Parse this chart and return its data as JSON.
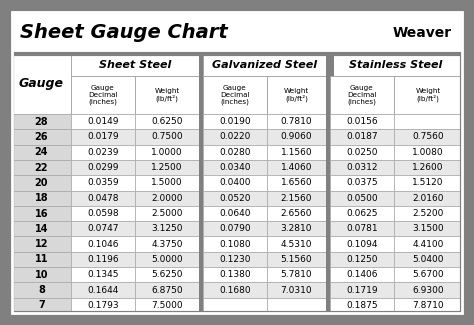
{
  "title": "Sheet Gauge Chart",
  "bg_outer": "#808080",
  "bg_white": "#ffffff",
  "bg_light_gray": "#d8d8d8",
  "bg_row_even": "#ffffff",
  "bg_row_odd": "#e8e8e8",
  "border_dark": "#555555",
  "border_light": "#aaaaaa",
  "gauges": [
    28,
    26,
    24,
    22,
    20,
    18,
    16,
    14,
    12,
    11,
    10,
    8,
    7
  ],
  "sheet_steel": [
    [
      "0.0149",
      "0.6250"
    ],
    [
      "0.0179",
      "0.7500"
    ],
    [
      "0.0239",
      "1.0000"
    ],
    [
      "0.0299",
      "1.2500"
    ],
    [
      "0.0359",
      "1.5000"
    ],
    [
      "0.0478",
      "2.0000"
    ],
    [
      "0.0598",
      "2.5000"
    ],
    [
      "0.0747",
      "3.1250"
    ],
    [
      "0.1046",
      "4.3750"
    ],
    [
      "0.1196",
      "5.0000"
    ],
    [
      "0.1345",
      "5.6250"
    ],
    [
      "0.1644",
      "6.8750"
    ],
    [
      "0.1793",
      "7.5000"
    ]
  ],
  "galvanized_steel": [
    [
      "0.0190",
      "0.7810"
    ],
    [
      "0.0220",
      "0.9060"
    ],
    [
      "0.0280",
      "1.1560"
    ],
    [
      "0.0340",
      "1.4060"
    ],
    [
      "0.0400",
      "1.6560"
    ],
    [
      "0.0520",
      "2.1560"
    ],
    [
      "0.0640",
      "2.6560"
    ],
    [
      "0.0790",
      "3.2810"
    ],
    [
      "0.1080",
      "4.5310"
    ],
    [
      "0.1230",
      "5.1560"
    ],
    [
      "0.1380",
      "5.7810"
    ],
    [
      "0.1680",
      "7.0310"
    ],
    [
      "",
      ""
    ]
  ],
  "stainless_steel": [
    [
      "0.0156",
      ""
    ],
    [
      "0.0187",
      "0.7560"
    ],
    [
      "0.0250",
      "1.0080"
    ],
    [
      "0.0312",
      "1.2600"
    ],
    [
      "0.0375",
      "1.5120"
    ],
    [
      "0.0500",
      "2.0160"
    ],
    [
      "0.0625",
      "2.5200"
    ],
    [
      "0.0781",
      "3.1500"
    ],
    [
      "0.1094",
      "4.4100"
    ],
    [
      "0.1250",
      "5.0400"
    ],
    [
      "0.1406",
      "5.6700"
    ],
    [
      "0.1719",
      "6.9300"
    ],
    [
      "0.1875",
      "7.8710"
    ]
  ]
}
